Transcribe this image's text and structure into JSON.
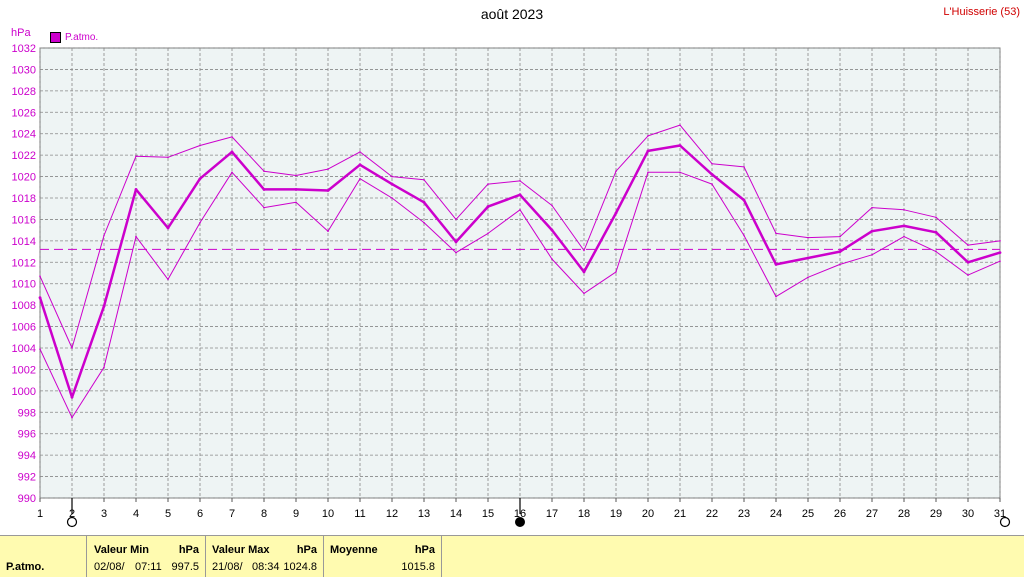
{
  "title": "août 2023",
  "station": "L'Huisserie (53)",
  "unit": "hPa",
  "legend_label": "P.atmo.",
  "colors": {
    "series": "#cc00cc",
    "grid": "#888888",
    "background": "#eef4f4",
    "station": "#d00000"
  },
  "chart_data": {
    "type": "line",
    "title": "août 2023",
    "ylabel": "hPa",
    "ylim": [
      990,
      1032
    ],
    "yticks": [
      "990",
      "992",
      "994",
      "996",
      "998",
      "1000",
      "1002",
      "1004",
      "1006",
      "1008",
      "1010",
      "1012",
      "1014",
      "1016",
      "1018",
      "1020",
      "1022",
      "1024",
      "1026",
      "1028",
      "1030",
      "1032"
    ],
    "x": [
      "1",
      "2",
      "3",
      "4",
      "5",
      "6",
      "7",
      "8",
      "9",
      "10",
      "11",
      "12",
      "13",
      "14",
      "15",
      "16",
      "17",
      "18",
      "19",
      "20",
      "21",
      "22",
      "23",
      "24",
      "25",
      "26",
      "27",
      "28",
      "29",
      "30",
      "31"
    ],
    "mean_line": 1013.2,
    "series": [
      {
        "name": "P.atmo.",
        "role": "mean",
        "values": [
          1008.7,
          999.4,
          1007.9,
          1018.8,
          1015.2,
          1019.8,
          1022.3,
          1018.8,
          1018.8,
          1018.7,
          1021.1,
          1019.3,
          1017.6,
          1013.9,
          1017.2,
          1018.3,
          1015.0,
          1011.1,
          1016.6,
          1022.4,
          1022.9,
          1020.2,
          1017.8,
          1011.8,
          1012.4,
          1013.0,
          1014.9,
          1015.4,
          1014.8,
          1012.0,
          1012.9
        ]
      },
      {
        "role": "max",
        "values": [
          1010.7,
          1004.0,
          1014.5,
          1021.9,
          1021.8,
          1022.9,
          1023.7,
          1020.5,
          1020.1,
          1020.7,
          1022.3,
          1020.0,
          1019.7,
          1016.0,
          1019.3,
          1019.6,
          1017.3,
          1013.1,
          1020.5,
          1023.8,
          1024.8,
          1021.2,
          1020.9,
          1014.7,
          1014.3,
          1014.4,
          1017.1,
          1016.9,
          1016.2,
          1013.6,
          1014.0
        ]
      },
      {
        "role": "min",
        "values": [
          1003.9,
          997.5,
          1002.2,
          1014.4,
          1010.4,
          1015.7,
          1020.4,
          1017.1,
          1017.6,
          1014.9,
          1019.8,
          1018.0,
          1015.7,
          1012.9,
          1014.7,
          1016.9,
          1012.3,
          1009.1,
          1011.1,
          1020.4,
          1020.4,
          1019.3,
          1014.5,
          1008.8,
          1010.6,
          1011.8,
          1012.7,
          1014.4,
          1013.0,
          1010.8,
          1012.1
        ]
      }
    ]
  },
  "stats": {
    "row_label": "P.atmo.",
    "min": {
      "header": "Valeur Min",
      "unit": "hPa",
      "date": "02/08/",
      "time": "07:11",
      "value": "997.5"
    },
    "max": {
      "header": "Valeur Max",
      "unit": "hPa",
      "date": "21/08/",
      "time": "08:34",
      "value": "1024.8"
    },
    "avg": {
      "header": "Moyenne",
      "unit": "hPa",
      "value": "1015.8"
    }
  }
}
